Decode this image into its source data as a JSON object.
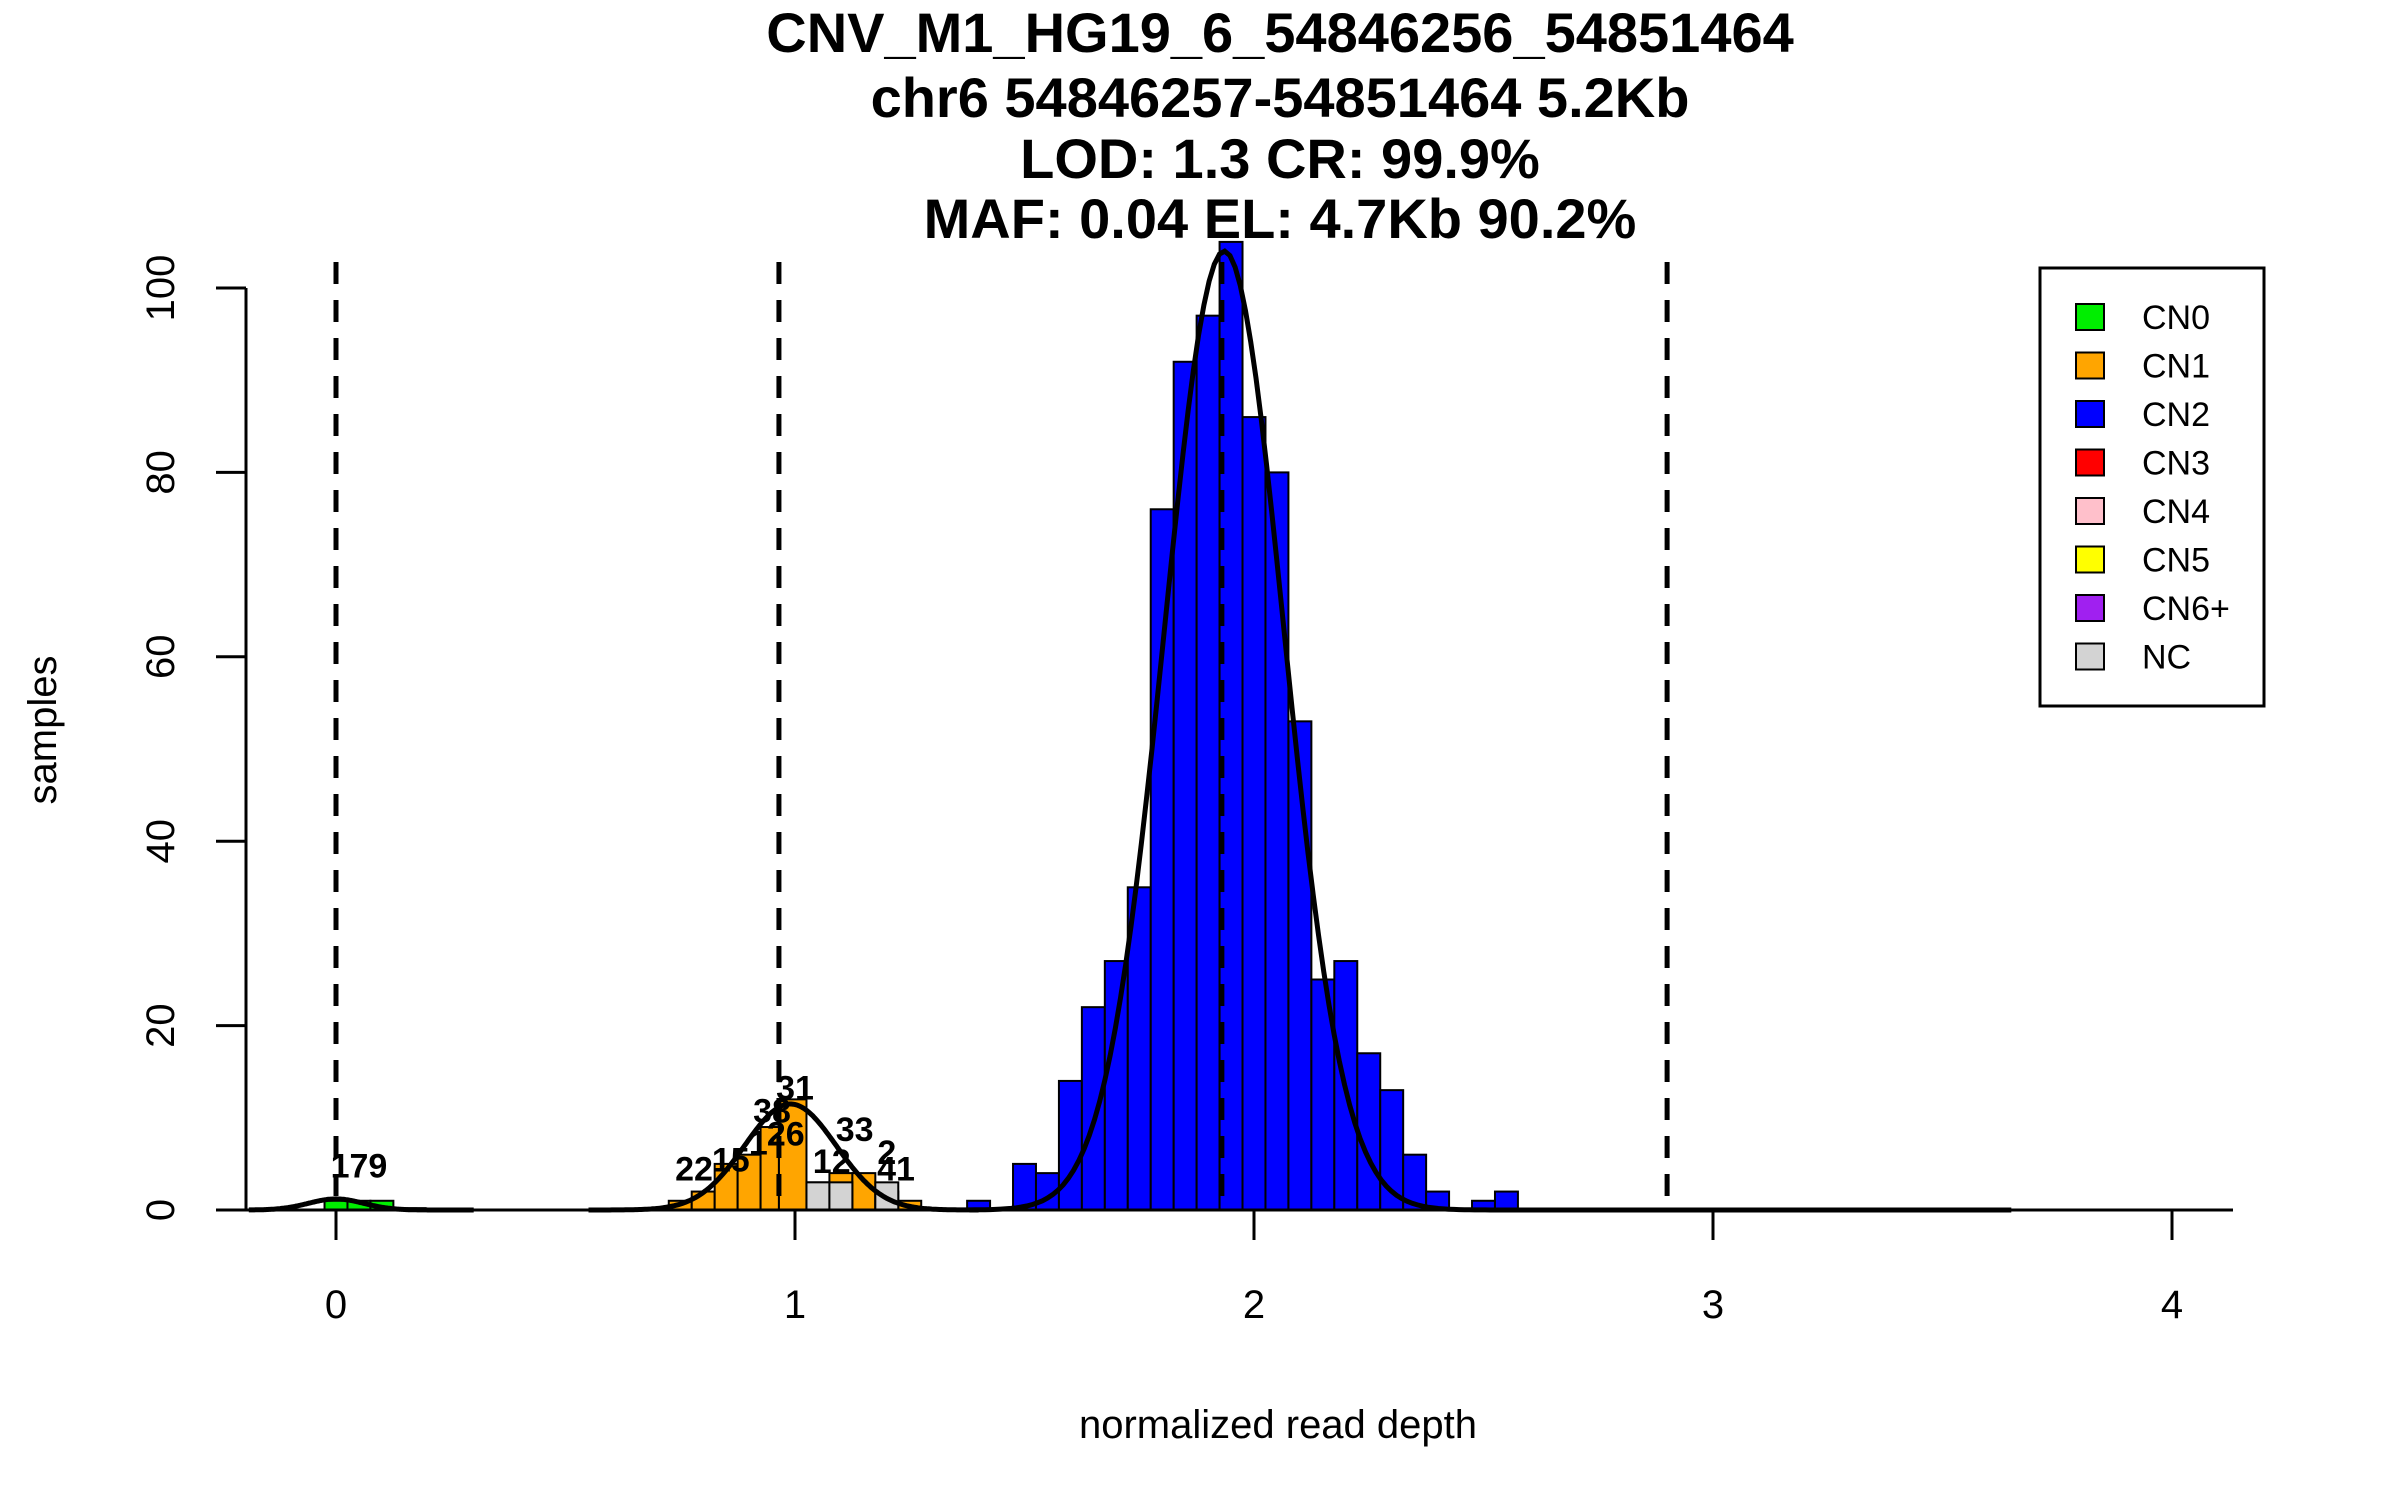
{
  "chart_data": {
    "type": "bar",
    "title_lines": [
      "CNV_M1_HG19_6_54846256_54851464",
      "chr6 54846257-54851464 5.2Kb",
      "LOD: 1.3 CR: 99.9%",
      "MAF: 0.04 EL: 4.7Kb 90.2%"
    ],
    "xlabel": "normalized read depth",
    "ylabel": "samples",
    "xlim": [
      -0.19,
      4.13
    ],
    "ylim": [
      0,
      104
    ],
    "xticks": [
      "0",
      "1",
      "2",
      "3",
      "4"
    ],
    "yticks": [
      "0",
      "20",
      "40",
      "60",
      "80",
      "100"
    ],
    "thresholds": [
      0.0,
      0.965,
      1.93,
      2.9
    ],
    "bin_width": 0.05,
    "colors": {
      "CN0": "#00ee00",
      "CN1": "#ffa500",
      "CN2": "#0000ff",
      "CN3": "#ff0000",
      "CN4": "#ffc0cb",
      "CN5": "#ffff00",
      "CN6+": "#a020f0",
      "NC": "#d3d3d3"
    },
    "legend": {
      "position": "top-right",
      "entries": [
        "CN0",
        "CN1",
        "CN2",
        "CN3",
        "CN4",
        "CN5",
        "CN6+",
        "NC"
      ]
    },
    "series": [
      {
        "name": "CN0",
        "bins": [
          {
            "x0": -0.025,
            "x1": 0.025,
            "y": 1
          },
          {
            "x0": 0.025,
            "x1": 0.075,
            "y": 1
          },
          {
            "x0": 0.075,
            "x1": 0.125,
            "y": 1
          },
          {
            "x0": 0.125,
            "x1": 0.195,
            "y": 0.2
          }
        ]
      },
      {
        "name": "CN1",
        "bins": [
          {
            "x0": 0.725,
            "x1": 0.775,
            "y": 1
          },
          {
            "x0": 0.775,
            "x1": 0.825,
            "y": 2
          },
          {
            "x0": 0.825,
            "x1": 0.875,
            "y": 5
          },
          {
            "x0": 0.875,
            "x1": 0.925,
            "y": 6
          },
          {
            "x0": 0.925,
            "x1": 0.965,
            "y": 9
          },
          {
            "x0": 0.965,
            "x1": 1.025,
            "y": 12
          },
          {
            "x0": 1.025,
            "x1": 1.075,
            "y": 3
          },
          {
            "x0": 1.075,
            "x1": 1.125,
            "y": 4
          },
          {
            "x0": 1.125,
            "x1": 1.175,
            "y": 4
          },
          {
            "x0": 1.175,
            "x1": 1.225,
            "y": 2
          },
          {
            "x0": 1.225,
            "x1": 1.275,
            "y": 1
          }
        ]
      },
      {
        "name": "CN2",
        "bins": [
          {
            "x0": 1.375,
            "x1": 1.425,
            "y": 1
          },
          {
            "x0": 1.475,
            "x1": 1.525,
            "y": 5
          },
          {
            "x0": 1.525,
            "x1": 1.575,
            "y": 4
          },
          {
            "x0": 1.575,
            "x1": 1.625,
            "y": 14
          },
          {
            "x0": 1.625,
            "x1": 1.675,
            "y": 22
          },
          {
            "x0": 1.675,
            "x1": 1.725,
            "y": 27
          },
          {
            "x0": 1.725,
            "x1": 1.775,
            "y": 35
          },
          {
            "x0": 1.775,
            "x1": 1.825,
            "y": 76
          },
          {
            "x0": 1.825,
            "x1": 1.875,
            "y": 92
          },
          {
            "x0": 1.875,
            "x1": 1.925,
            "y": 97
          },
          {
            "x0": 1.925,
            "x1": 1.975,
            "y": 105
          },
          {
            "x0": 1.975,
            "x1": 2.025,
            "y": 86
          },
          {
            "x0": 2.025,
            "x1": 2.075,
            "y": 80
          },
          {
            "x0": 2.075,
            "x1": 2.125,
            "y": 53
          },
          {
            "x0": 2.125,
            "x1": 2.175,
            "y": 25
          },
          {
            "x0": 2.175,
            "x1": 2.225,
            "y": 27
          },
          {
            "x0": 2.225,
            "x1": 2.275,
            "y": 17
          },
          {
            "x0": 2.275,
            "x1": 2.325,
            "y": 13
          },
          {
            "x0": 2.325,
            "x1": 2.375,
            "y": 6
          },
          {
            "x0": 2.375,
            "x1": 2.425,
            "y": 2
          },
          {
            "x0": 2.475,
            "x1": 2.525,
            "y": 1
          },
          {
            "x0": 2.525,
            "x1": 2.575,
            "y": 2
          }
        ]
      },
      {
        "name": "NC",
        "bins": [
          {
            "x0": 1.025,
            "x1": 1.075,
            "y": 3
          },
          {
            "x0": 1.075,
            "x1": 1.125,
            "y": 3
          },
          {
            "x0": 1.175,
            "x1": 1.225,
            "y": 3
          }
        ]
      }
    ],
    "bar_labels": [
      {
        "text": "179",
        "x": 0.05,
        "y": 3.5
      },
      {
        "text": "22",
        "x": 0.78,
        "y": 3.2
      },
      {
        "text": "15",
        "x": 0.86,
        "y": 4.2
      },
      {
        "text": "38",
        "x": 0.95,
        "y": 9.5
      },
      {
        "text": "31",
        "x": 1.0,
        "y": 12.0
      },
      {
        "text": "26",
        "x": 0.98,
        "y": 7.0
      },
      {
        "text": "1",
        "x": 0.92,
        "y": 6.0
      },
      {
        "text": "33",
        "x": 1.13,
        "y": 7.5
      },
      {
        "text": "12",
        "x": 1.08,
        "y": 4.0
      },
      {
        "text": "2",
        "x": 1.2,
        "y": 5.0
      },
      {
        "text": "41",
        "x": 1.22,
        "y": 3.2
      }
    ],
    "density_curves": [
      {
        "mu": 0.0,
        "sigma": 0.06,
        "peak": 1.2,
        "xrange": [
          -0.19,
          0.3
        ]
      },
      {
        "mu": 0.99,
        "sigma": 0.1,
        "peak": 11.5,
        "xrange": [
          0.55,
          1.4
        ]
      },
      {
        "mu": 1.935,
        "sigma": 0.13,
        "peak": 104,
        "xrange": [
          1.38,
          3.65
        ]
      }
    ]
  }
}
